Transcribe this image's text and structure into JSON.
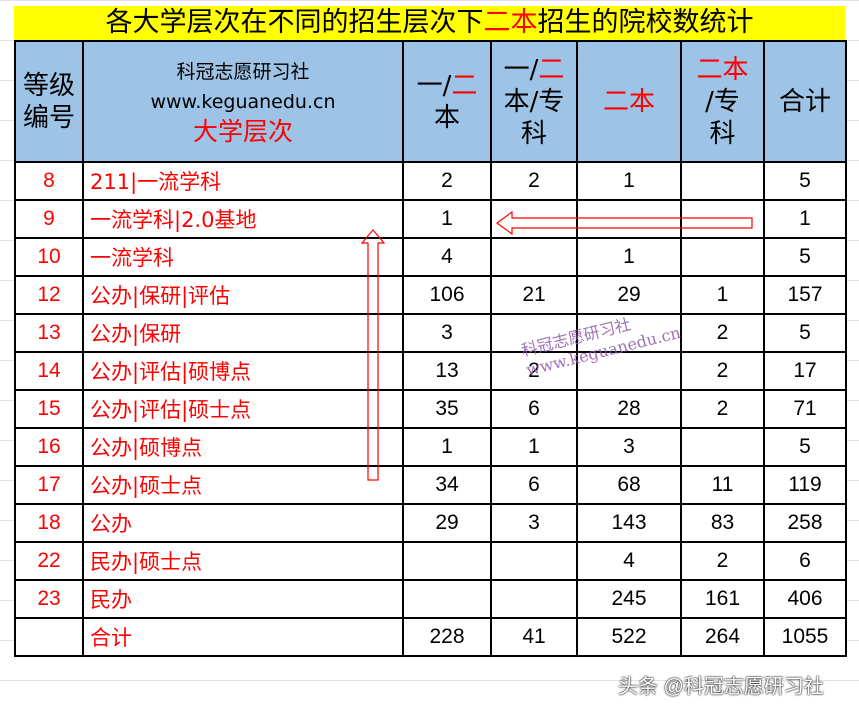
{
  "title": {
    "part1": "各大学层次在不同的招生层次下",
    "highlight": "二本",
    "part2": "招生的院校数统计"
  },
  "header": {
    "grade_no": "等级编号",
    "brand_name": "科冠志愿研习社",
    "brand_url": "www.keguanedu.cn",
    "level": "大学层次",
    "cols": [
      {
        "a": "一/",
        "r": "二",
        "b": "本"
      },
      {
        "a": "一/",
        "r": "二",
        "b": "本/专科"
      },
      {
        "a": "",
        "r": "二本",
        "b": ""
      },
      {
        "a": "",
        "r": "二本",
        "b": "/专科"
      },
      {
        "a": "合计",
        "r": "",
        "b": ""
      }
    ]
  },
  "rows": [
    {
      "no": "8",
      "level": "211|一流学科",
      "v": [
        "2",
        "2",
        "1",
        "",
        "5"
      ]
    },
    {
      "no": "9",
      "level": "一流学科|2.0基地",
      "v": [
        "1",
        "",
        "",
        "",
        "1"
      ]
    },
    {
      "no": "10",
      "level": "一流学科",
      "v": [
        "4",
        "",
        "1",
        "",
        "5"
      ]
    },
    {
      "no": "12",
      "level": "公办|保研|评估",
      "v": [
        "106",
        "21",
        "29",
        "1",
        "157"
      ]
    },
    {
      "no": "13",
      "level": "公办|保研",
      "v": [
        "3",
        "",
        "",
        "2",
        "5"
      ]
    },
    {
      "no": "14",
      "level": "公办|评估|硕博点",
      "v": [
        "13",
        "2",
        "",
        "2",
        "17"
      ]
    },
    {
      "no": "15",
      "level": "公办|评估|硕士点",
      "v": [
        "35",
        "6",
        "28",
        "2",
        "71"
      ]
    },
    {
      "no": "16",
      "level": "公办|硕博点",
      "v": [
        "1",
        "1",
        "3",
        "",
        "5"
      ]
    },
    {
      "no": "17",
      "level": "公办|硕士点",
      "v": [
        "34",
        "6",
        "68",
        "11",
        "119"
      ]
    },
    {
      "no": "18",
      "level": "公办",
      "v": [
        "29",
        "3",
        "143",
        "83",
        "258"
      ]
    },
    {
      "no": "22",
      "level": "民办|硕士点",
      "v": [
        "",
        "",
        "4",
        "2",
        "6"
      ]
    },
    {
      "no": "23",
      "level": "民办",
      "v": [
        "",
        "",
        "245",
        "161",
        "406"
      ]
    },
    {
      "no": "",
      "level": "合计",
      "v": [
        "228",
        "41",
        "522",
        "264",
        "1055"
      ]
    }
  ],
  "watermark": {
    "line1": "科冠志愿研习社",
    "line2": "www.keguanedu.cn",
    "footer": "头条 @科冠志愿研习社"
  },
  "colors": {
    "header_bg": "#9dc3e6",
    "title_bg": "#ffff00",
    "accent": "#ff0000"
  }
}
